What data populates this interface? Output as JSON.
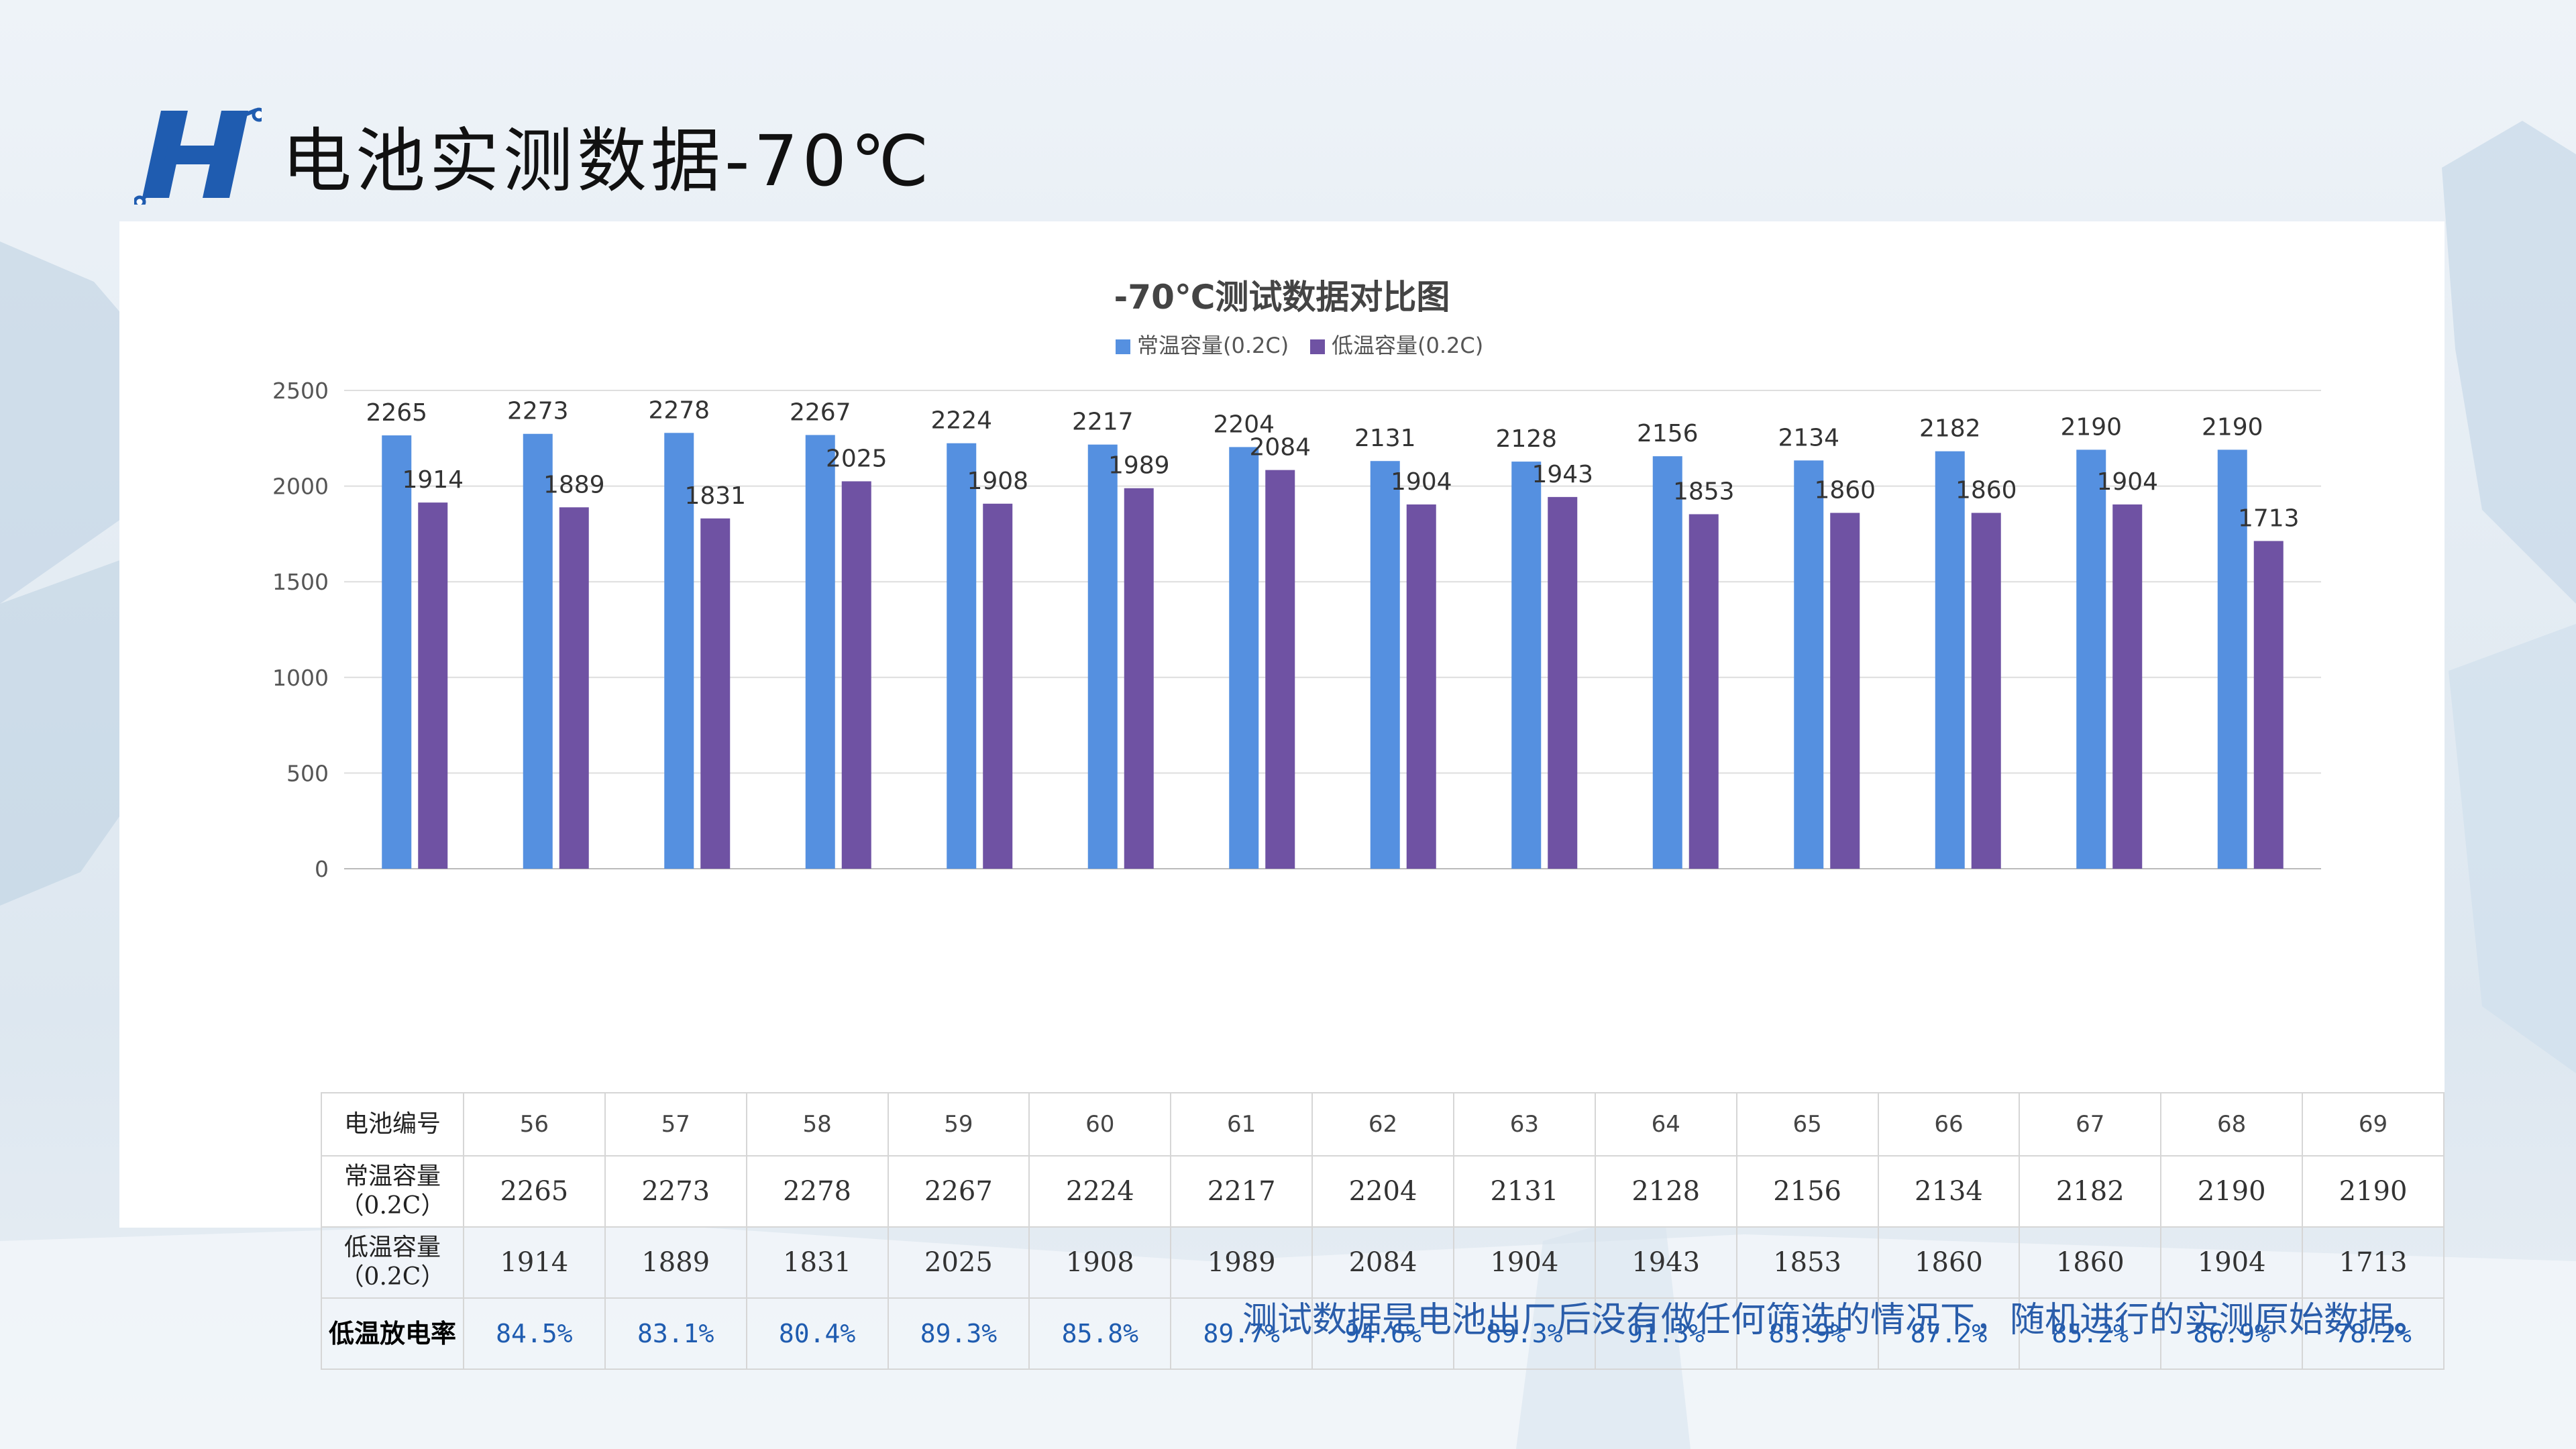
{
  "page": {
    "title": "电池实测数据-70℃",
    "footnote": "测试数据是电池出厂后没有做任何筛选的情况下，随机进行的实测原始数据。"
  },
  "chart_data": {
    "type": "bar",
    "title": "-70℃测试数据对比图",
    "categories": [
      "56",
      "57",
      "58",
      "59",
      "60",
      "61",
      "62",
      "63",
      "64",
      "65",
      "66",
      "67",
      "68",
      "69"
    ],
    "series": [
      {
        "name": "常温容量(0.2C)",
        "color": "#5590e0",
        "values": [
          2265,
          2273,
          2278,
          2267,
          2224,
          2217,
          2204,
          2131,
          2128,
          2156,
          2134,
          2182,
          2190,
          2190
        ]
      },
      {
        "name": "低温容量(0.2C)",
        "color": "#6f52a3",
        "values": [
          1914,
          1889,
          1831,
          2025,
          1908,
          1989,
          2084,
          1904,
          1943,
          1853,
          1860,
          1860,
          1904,
          1713
        ]
      }
    ],
    "ylim": [
      0,
      2500
    ],
    "yticks": [
      0,
      500,
      1000,
      1500,
      2000,
      2500
    ],
    "legend_position": "top",
    "grid": true
  },
  "table": {
    "row_headers": {
      "id": "电池编号",
      "normal": [
        "常温容量",
        "（0.2C）"
      ],
      "low": [
        "低温容量",
        "（0.2C）"
      ],
      "rate": "低温放电率"
    },
    "rates": [
      "84.5%",
      "83.1%",
      "80.4%",
      "89.3%",
      "85.8%",
      "89.7%",
      "94.6%",
      "89.3%",
      "91.3%",
      "85.9%",
      "87.2%",
      "85.2%",
      "86.9%",
      "78.2%"
    ]
  },
  "colors": {
    "accent": "#1f5cb0",
    "logo": "#1f5cb0"
  }
}
